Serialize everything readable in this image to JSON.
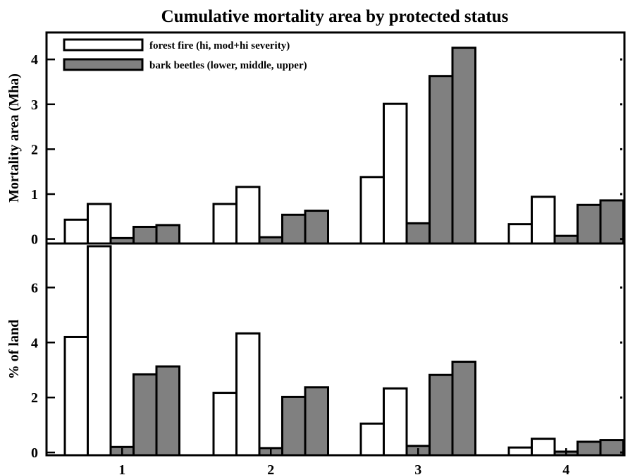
{
  "title": "Cumulative mortality area by protected status",
  "legend": [
    {
      "label": "forest fire (hi, mod+hi severity)",
      "color": "#ffffff"
    },
    {
      "label": "bark beetles (lower, middle, upper)",
      "color": "#808080"
    }
  ],
  "chart_data": [
    {
      "type": "bar",
      "ylabel": "Mortality area (Mha)",
      "ylim": [
        -0.1,
        4.6
      ],
      "yticks": [
        0,
        1,
        2,
        3,
        4
      ],
      "categories": [
        "1",
        "2",
        "3",
        "4"
      ],
      "series": [
        {
          "name": "forest fire (hi, mod+hi severity)",
          "variant": "hi",
          "color": "#ffffff",
          "values": [
            0.43,
            0.78,
            1.38,
            0.33
          ]
        },
        {
          "name": "forest fire (hi, mod+hi severity)",
          "variant": "mod+hi",
          "color": "#ffffff",
          "values": [
            0.78,
            1.16,
            3.01,
            0.94
          ]
        },
        {
          "name": "bark beetles (lower, middle, upper)",
          "variant": "lower",
          "color": "#808080",
          "values": [
            0.02,
            0.04,
            0.35,
            0.07
          ]
        },
        {
          "name": "bark beetles (lower, middle, upper)",
          "variant": "middle",
          "color": "#808080",
          "values": [
            0.27,
            0.54,
            3.63,
            0.76
          ]
        },
        {
          "name": "bark beetles (lower, middle, upper)",
          "variant": "upper",
          "color": "#808080",
          "values": [
            0.31,
            0.63,
            4.26,
            0.86
          ]
        }
      ]
    },
    {
      "type": "bar",
      "ylabel": "% of land",
      "ylim": [
        -0.1,
        7.6
      ],
      "yticks": [
        0,
        2,
        4,
        6
      ],
      "categories": [
        "1",
        "2",
        "3",
        "4"
      ],
      "series": [
        {
          "name": "forest fire (hi, mod+hi severity)",
          "variant": "hi",
          "color": "#ffffff",
          "values": [
            4.2,
            2.17,
            1.05,
            0.18
          ]
        },
        {
          "name": "forest fire (hi, mod+hi severity)",
          "variant": "mod+hi",
          "color": "#ffffff",
          "values": [
            7.5,
            4.33,
            2.33,
            0.5
          ]
        },
        {
          "name": "bark beetles (lower, middle, upper)",
          "variant": "lower",
          "color": "#808080",
          "values": [
            0.2,
            0.16,
            0.24,
            0.03
          ]
        },
        {
          "name": "bark beetles (lower, middle, upper)",
          "variant": "middle",
          "color": "#808080",
          "values": [
            2.84,
            2.02,
            2.82,
            0.39
          ]
        },
        {
          "name": "bark beetles (lower, middle, upper)",
          "variant": "upper",
          "color": "#808080",
          "values": [
            3.13,
            2.37,
            3.3,
            0.45
          ]
        }
      ]
    }
  ]
}
